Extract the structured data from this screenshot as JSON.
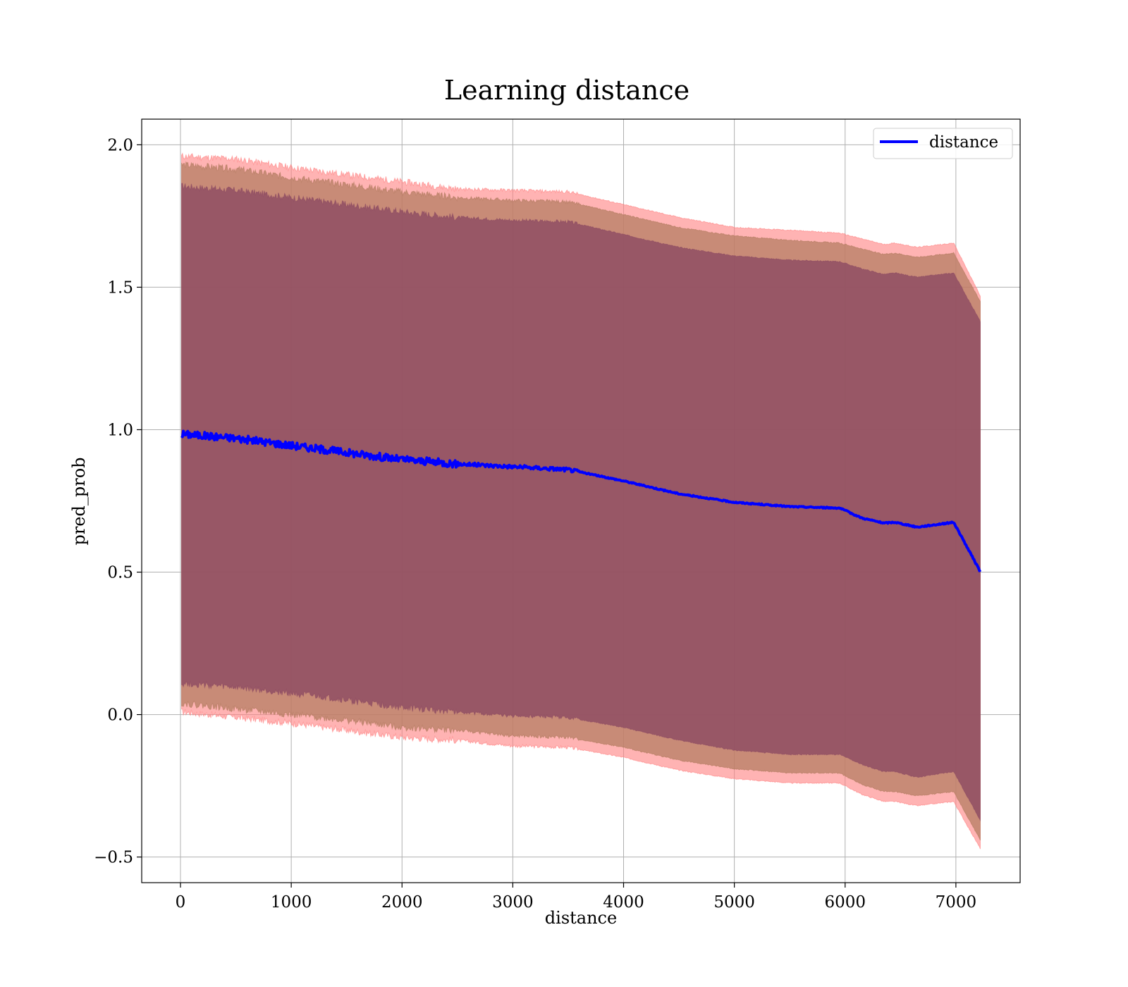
{
  "chart_data": {
    "type": "line",
    "title": "Learning distance",
    "xlabel": "distance",
    "ylabel": "pred_prob",
    "xlim": [
      -350,
      7580
    ],
    "ylim": [
      -0.59,
      2.09
    ],
    "xticks": [
      0,
      1000,
      2000,
      3000,
      4000,
      5000,
      6000,
      7000
    ],
    "yticks": [
      -0.5,
      0.0,
      0.5,
      1.0,
      1.5,
      2.0
    ],
    "ytick_labels": [
      "−0.5",
      "0.0",
      "0.5",
      "1.0",
      "1.5",
      "2.0"
    ],
    "xtick_labels": [
      "0",
      "1000",
      "2000",
      "3000",
      "4000",
      "5000",
      "6000",
      "7000"
    ],
    "grid": true,
    "legend": {
      "position": "top-right",
      "entries": [
        "distance"
      ]
    },
    "x": [
      10,
      500,
      1000,
      1500,
      2000,
      2500,
      3000,
      3500,
      4000,
      4500,
      5000,
      5500,
      5950,
      6150,
      6350,
      6450,
      6650,
      6980,
      7220
    ],
    "series": [
      {
        "name": "distance",
        "color": "#0000ff",
        "values": [
          0.985,
          0.97,
          0.945,
          0.92,
          0.895,
          0.88,
          0.87,
          0.86,
          0.82,
          0.775,
          0.745,
          0.73,
          0.725,
          0.69,
          0.672,
          0.675,
          0.658,
          0.675,
          0.502
        ]
      }
    ],
    "bands": [
      {
        "color": "#ff8080",
        "opacity": 0.6,
        "upper": [
          1.96,
          1.95,
          1.92,
          1.895,
          1.87,
          1.845,
          1.84,
          1.835,
          1.79,
          1.745,
          1.71,
          1.7,
          1.69,
          1.67,
          1.65,
          1.655,
          1.64,
          1.655,
          1.47
        ],
        "lower": [
          0.01,
          -0.01,
          -0.03,
          -0.055,
          -0.08,
          -0.09,
          -0.11,
          -0.115,
          -0.15,
          -0.195,
          -0.225,
          -0.24,
          -0.24,
          -0.28,
          -0.305,
          -0.305,
          -0.32,
          -0.305,
          -0.47
        ]
      },
      {
        "color": "#b07a5e",
        "opacity": 0.7,
        "upper": [
          1.93,
          1.915,
          1.885,
          1.86,
          1.835,
          1.815,
          1.805,
          1.8,
          1.755,
          1.71,
          1.68,
          1.665,
          1.655,
          1.635,
          1.615,
          1.62,
          1.605,
          1.62,
          1.45
        ],
        "lower": [
          0.04,
          0.02,
          0.0,
          -0.02,
          -0.045,
          -0.055,
          -0.075,
          -0.08,
          -0.115,
          -0.16,
          -0.19,
          -0.205,
          -0.205,
          -0.245,
          -0.27,
          -0.27,
          -0.285,
          -0.27,
          -0.44
        ]
      },
      {
        "color": "#8c4a62",
        "opacity": 0.8,
        "upper": [
          1.855,
          1.84,
          1.815,
          1.79,
          1.765,
          1.745,
          1.735,
          1.73,
          1.685,
          1.64,
          1.61,
          1.595,
          1.59,
          1.565,
          1.545,
          1.55,
          1.535,
          1.55,
          1.38
        ],
        "lower": [
          0.11,
          0.095,
          0.075,
          0.05,
          0.025,
          0.01,
          -0.005,
          -0.01,
          -0.045,
          -0.09,
          -0.125,
          -0.14,
          -0.14,
          -0.175,
          -0.2,
          -0.2,
          -0.22,
          -0.2,
          -0.37
        ]
      }
    ]
  }
}
